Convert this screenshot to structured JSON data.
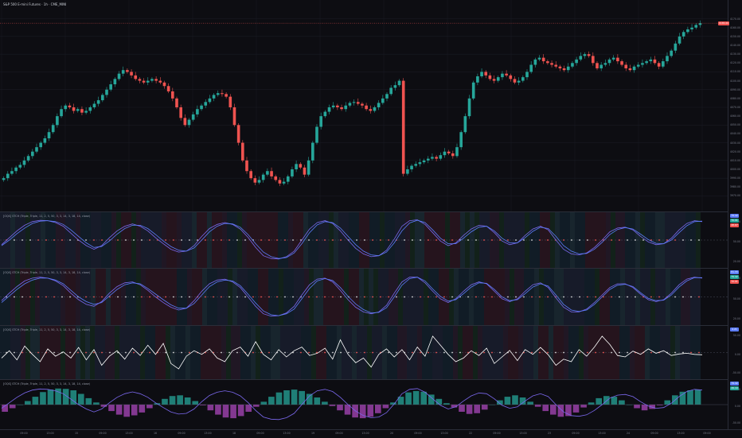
{
  "chart": {
    "title": "S&P 500 E-mini Futures · 1h · CME_MINI",
    "price_badge": "4165.00",
    "price_axis_ticks": [
      "4170.00",
      "4160.00",
      "4150.00",
      "4140.00",
      "4130.00",
      "4120.00",
      "4110.00",
      "4100.00",
      "4090.00",
      "4080.00",
      "4070.00",
      "4060.00",
      "4050.00",
      "4040.00",
      "4030.00",
      "4020.00",
      "4010.00",
      "4000.00",
      "3990.00",
      "3980.00",
      "3970.00"
    ],
    "time_axis_ticks": [
      "09:00",
      "13:00",
      "15",
      "09:00",
      "13:00",
      "16",
      "09:00",
      "13:00",
      "18",
      "09:00",
      "13:00",
      "19",
      "09:00",
      "13:00",
      "20",
      "09:00",
      "13:00",
      "22",
      "09:00",
      "13:00",
      "23",
      "09:00",
      "13:00",
      "24",
      "09:00",
      "13:00",
      "09:00"
    ]
  },
  "panels": [
    {
      "label": "[OQS] STCH (Triple, Triple, 11, 2, 5, 50, 3, 3, 14, 3, 18, 14, close)",
      "badges": [
        "79.42",
        "70.01",
        "48.67"
      ],
      "axis_ticks": [
        "80.00",
        "50.00",
        "20.00"
      ]
    },
    {
      "label": "[OQS] STCH (Triple, Triple, 11, 2, 5, 50, 3, 3, 14, 3, 18, 14, close)",
      "badges": [
        "81.33",
        "79.42",
        "70.01"
      ],
      "axis_ticks": [
        "80.00",
        "50.00",
        "20.00"
      ]
    },
    {
      "label": "[OQS] STCH (Triple, Triple, 11, 2, 5, 50, 3, 3, 14, 3, 18, 14, close)",
      "badges": [
        "4.21"
      ],
      "axis_ticks": [
        "50.00",
        "0.00",
        "-50.00"
      ]
    },
    {
      "label": "[OQS] STCH (Triple, Triple, 11, 2, 5, 50, 3, 3, 14, 3, 18, 14, close)",
      "badges": [
        "79.42",
        "26.10"
      ],
      "axis_ticks": [
        "50.00",
        "0.00",
        "-50.00"
      ]
    }
  ],
  "colors": {
    "up": "#26a69a",
    "down": "#ef5350",
    "k_line": "#7b68ee",
    "d_line": "#5c7cfa",
    "dot_red": "#ef5350",
    "dot_white": "#d8d8d8",
    "osc_line": "#ffffff",
    "hist_up": "#26a69a",
    "hist_down": "#ab47bc"
  },
  "chart_data": [
    {
      "type": "candlestick",
      "title": "S&P 500 E-mini Futures · 1h · CME_MINI",
      "ylim": [
        3965,
        4175
      ],
      "close": [
        3990,
        3995,
        3998,
        4002,
        4005,
        4010,
        4015,
        4020,
        4025,
        4030,
        4035,
        4042,
        4050,
        4060,
        4068,
        4072,
        4070,
        4066,
        4068,
        4064,
        4066,
        4070,
        4074,
        4078,
        4084,
        4090,
        4096,
        4102,
        4108,
        4112,
        4110,
        4106,
        4102,
        4100,
        4098,
        4100,
        4102,
        4100,
        4098,
        4094,
        4088,
        4080,
        4070,
        4058,
        4050,
        4056,
        4062,
        4068,
        4072,
        4076,
        4080,
        4084,
        4086,
        4085,
        4082,
        4070,
        4050,
        4030,
        4010,
        3998,
        3990,
        3985,
        3988,
        3994,
        3998,
        3992,
        3988,
        3984,
        3986,
        3992,
        4000,
        4006,
        4002,
        3994,
        4010,
        4030,
        4048,
        4060,
        4065,
        4070,
        4072,
        4070,
        4068,
        4072,
        4075,
        4076,
        4074,
        4072,
        4068,
        4066,
        4070,
        4075,
        4080,
        4085,
        4092,
        4095,
        4100,
        3995,
        4000,
        4004,
        4006,
        4008,
        4010,
        4012,
        4014,
        4012,
        4016,
        4020,
        4018,
        4015,
        4025,
        4042,
        4060,
        4080,
        4098,
        4105,
        4110,
        4106,
        4102,
        4100,
        4104,
        4108,
        4106,
        4102,
        4098,
        4100,
        4104,
        4110,
        4118,
        4124,
        4126,
        4122,
        4120,
        4118,
        4116,
        4114,
        4112,
        4116,
        4120,
        4124,
        4128,
        4130,
        4128,
        4120,
        4114,
        4118,
        4120,
        4124,
        4126,
        4122,
        4118,
        4114,
        4112,
        4116,
        4118,
        4120,
        4122,
        4124,
        4120,
        4116,
        4122,
        4128,
        4134,
        4142,
        4150,
        4155,
        4158,
        4160,
        4163,
        4165
      ]
    },
    {
      "type": "line",
      "title": "[OQS] STCH (Triple, Triple, 11, 2, 5, 50, 3, 3, 14, 3, 18, 14, close)",
      "ylim": [
        0,
        100
      ],
      "series": [
        {
          "name": "K",
          "values": [
            40,
            55,
            70,
            82,
            90,
            93,
            92,
            88,
            80,
            65,
            50,
            38,
            30,
            38,
            55,
            70,
            80,
            85,
            80,
            70,
            55,
            42,
            30,
            24,
            26,
            38,
            58,
            75,
            84,
            88,
            84,
            74,
            56,
            34,
            16,
            10,
            9,
            14,
            26,
            50,
            74,
            88,
            92,
            86,
            70,
            50,
            32,
            20,
            14,
            16,
            28,
            52,
            80,
            92,
            94,
            84,
            66,
            48,
            38,
            44,
            60,
            74,
            82,
            80,
            66,
            48,
            40,
            44,
            60,
            74,
            80,
            72,
            50,
            30,
            20,
            18,
            22,
            34,
            50,
            68,
            76,
            78,
            72,
            58,
            46,
            40,
            42,
            54,
            72,
            86,
            92,
            90
          ]
        },
        {
          "name": "D",
          "values": [
            38,
            50,
            64,
            76,
            86,
            91,
            92,
            90,
            84,
            72,
            58,
            44,
            34,
            36,
            48,
            63,
            75,
            82,
            82,
            75,
            62,
            48,
            36,
            28,
            26,
            33,
            50,
            68,
            80,
            86,
            85,
            78,
            62,
            42,
            24,
            14,
            10,
            12,
            22,
            42,
            66,
            83,
            90,
            88,
            76,
            58,
            40,
            26,
            18,
            16,
            24,
            44,
            70,
            87,
            93,
            88,
            72,
            54,
            42,
            42,
            54,
            68,
            78,
            80,
            70,
            54,
            44,
            44,
            55,
            69,
            78,
            75,
            58,
            38,
            26,
            20,
            21,
            30,
            45,
            62,
            73,
            77,
            74,
            63,
            51,
            43,
            42,
            50,
            66,
            81,
            90,
            91
          ]
        }
      ]
    },
    {
      "type": "line",
      "title": "[OQS] STCH (Triple, Triple, 11, 2, 5, 50, 3, 3, 14, 3, 18, 14, close)",
      "ylim": [
        0,
        100
      ],
      "series": [
        {
          "name": "K",
          "values": [
            42,
            58,
            72,
            84,
            90,
            92,
            90,
            84,
            74,
            58,
            44,
            34,
            30,
            40,
            58,
            72,
            80,
            82,
            76,
            64,
            50,
            38,
            28,
            22,
            26,
            42,
            62,
            78,
            86,
            88,
            82,
            70,
            50,
            30,
            14,
            9,
            10,
            16,
            30,
            54,
            76,
            88,
            90,
            82,
            64,
            44,
            28,
            18,
            14,
            18,
            32,
            58,
            82,
            92,
            92,
            80,
            62,
            46,
            38,
            46,
            62,
            76,
            82,
            78,
            62,
            46,
            40,
            46,
            62,
            76,
            80,
            70,
            48,
            28,
            18,
            18,
            24,
            38,
            54,
            70,
            78,
            78,
            70,
            56,
            44,
            40,
            44,
            58,
            76,
            88,
            92,
            90
          ]
        },
        {
          "name": "D",
          "values": [
            38,
            52,
            66,
            78,
            86,
            90,
            90,
            86,
            78,
            64,
            50,
            40,
            34,
            38,
            52,
            66,
            76,
            80,
            78,
            68,
            56,
            44,
            33,
            26,
            26,
            36,
            54,
            72,
            82,
            86,
            84,
            74,
            56,
            37,
            20,
            12,
            10,
            14,
            24,
            46,
            68,
            84,
            89,
            85,
            70,
            51,
            35,
            23,
            16,
            17,
            27,
            50,
            75,
            89,
            92,
            84,
            67,
            51,
            41,
            44,
            57,
            71,
            80,
            79,
            66,
            50,
            42,
            44,
            57,
            71,
            78,
            73,
            54,
            34,
            22,
            19,
            22,
            34,
            50,
            66,
            75,
            77,
            72,
            59,
            47,
            42,
            43,
            54,
            71,
            84,
            91,
            91
          ]
        }
      ]
    },
    {
      "type": "line",
      "title": "[OQS] STCH (Triple, Triple, 11, 2, 5, 50, 3, 3, 14, 3, 18, 14, close)",
      "ylim": [
        -60,
        60
      ],
      "series": [
        {
          "name": "Oscillator",
          "values": [
            -15,
            5,
            -20,
            18,
            -5,
            -25,
            10,
            -10,
            2,
            -15,
            14,
            -20,
            8,
            -35,
            -10,
            5,
            -18,
            12,
            -8,
            20,
            -5,
            25,
            -30,
            -45,
            -10,
            5,
            -5,
            10,
            -15,
            -25,
            5,
            15,
            -10,
            30,
            -5,
            -20,
            8,
            -12,
            5,
            15,
            -8,
            -2,
            12,
            -18,
            35,
            -5,
            -28,
            -15,
            -40,
            -5,
            10,
            -12,
            8,
            -20,
            15,
            -10,
            45,
            20,
            -5,
            -25,
            -15,
            5,
            -8,
            12,
            -30,
            -12,
            6,
            -22,
            8,
            -5,
            14,
            -6,
            -35,
            -18,
            -25,
            8,
            -10,
            15,
            45,
            22,
            -8,
            -12,
            4,
            -5,
            10,
            -2,
            5,
            -8,
            -4,
            -2,
            -5,
            -6
          ]
        }
      ]
    },
    {
      "type": "bar",
      "title": "[OQS] STCH (Triple, Triple, 11, 2, 5, 50, 3, 3, 14, 3, 18, 14, close)",
      "ylim": [
        -60,
        60
      ],
      "series": [
        {
          "name": "Histogram",
          "values": [
            -20,
            -10,
            0,
            10,
            22,
            35,
            42,
            45,
            44,
            40,
            30,
            18,
            6,
            -6,
            -18,
            -28,
            -34,
            -30,
            -22,
            -10,
            4,
            16,
            24,
            26,
            20,
            10,
            -2,
            -16,
            -28,
            -36,
            -38,
            -32,
            -20,
            -6,
            8,
            22,
            34,
            40,
            42,
            38,
            30,
            20,
            8,
            -4,
            -16,
            -28,
            -36,
            -38,
            -34,
            -24,
            -10,
            6,
            22,
            34,
            38,
            36,
            28,
            16,
            4,
            -8,
            -20,
            -26,
            -24,
            -14,
            0,
            12,
            22,
            26,
            20,
            8,
            -6,
            -18,
            -28,
            -34,
            -32,
            -22,
            -8,
            6,
            18,
            24,
            22,
            12,
            0,
            -10,
            -16,
            -12,
            -2,
            12,
            26,
            36,
            40,
            42
          ]
        }
      ]
    }
  ]
}
